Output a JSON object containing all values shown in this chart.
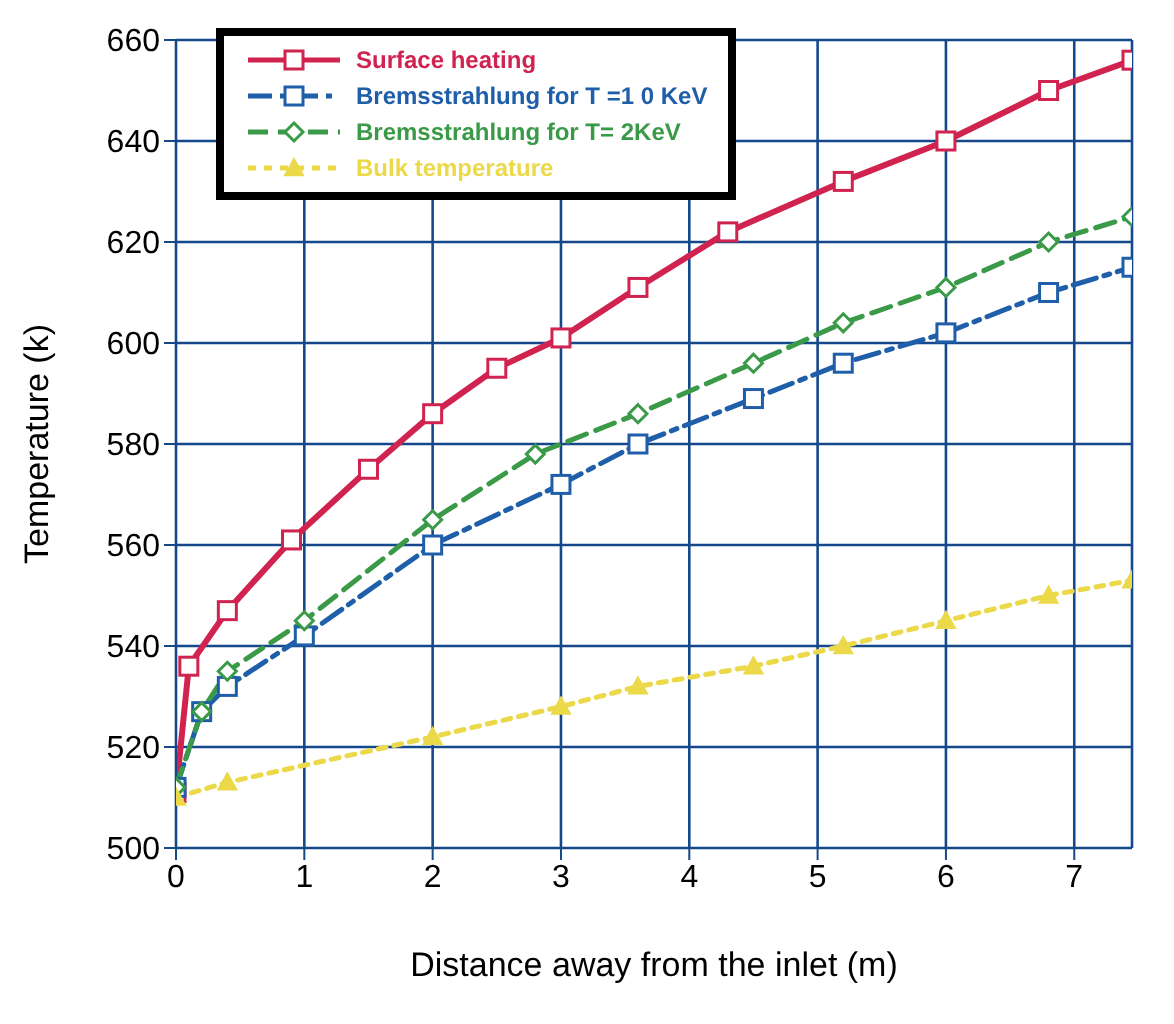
{
  "chart_data": {
    "type": "line",
    "xlabel": "Distance away from the inlet (m)",
    "ylabel": "Temperature (k)",
    "xlim": [
      0,
      7.45
    ],
    "xticks": [
      0,
      1,
      2,
      3,
      4,
      5,
      6,
      7
    ],
    "ylim": [
      500,
      660
    ],
    "yticks": [
      500,
      520,
      540,
      560,
      580,
      600,
      620,
      640,
      660
    ],
    "grid": true,
    "legend": "top left",
    "series": [
      {
        "name": "Surface heating",
        "color": "#d0234f",
        "marker": "square",
        "line_style": "solid",
        "x": [
          0,
          0.1,
          0.4,
          0.9,
          1.5,
          2,
          2.5,
          3,
          3.6,
          4.3,
          5.2,
          6,
          6.8,
          7.45
        ],
        "values": [
          511,
          536,
          547,
          561,
          575,
          586,
          595,
          601,
          611,
          622,
          632,
          640,
          650,
          656
        ]
      },
      {
        "name": "Bremsstrahlung for T =1 0 KeV",
        "color": "#1f5ea8",
        "marker": "square",
        "line_style": "dashdot",
        "x": [
          0,
          0.2,
          0.4,
          1,
          2,
          3,
          3.6,
          4.5,
          5.2,
          6,
          6.8,
          7.45
        ],
        "values": [
          512,
          527,
          532,
          542,
          560,
          572,
          580,
          589,
          596,
          602,
          610,
          615
        ]
      },
      {
        "name": "Bremsstrahlung for T= 2KeV",
        "color": "#3a9a48",
        "marker": "diamond",
        "line_style": "dashed",
        "x": [
          0,
          0.2,
          0.4,
          1,
          2,
          2.8,
          3.6,
          4.5,
          5.2,
          6,
          6.8,
          7.45
        ],
        "values": [
          512,
          527,
          535,
          545,
          565,
          578,
          586,
          596,
          604,
          611,
          620,
          625
        ]
      },
      {
        "name": "Bulk temperature",
        "color": "#ecd94a",
        "marker": "triangle",
        "line_style": "dotted",
        "x": [
          0,
          0.4,
          2,
          3,
          3.6,
          4.5,
          5.2,
          6,
          6.8,
          7.45
        ],
        "values": [
          510,
          513,
          522,
          528,
          532,
          536,
          540,
          545,
          550,
          553
        ]
      }
    ]
  }
}
